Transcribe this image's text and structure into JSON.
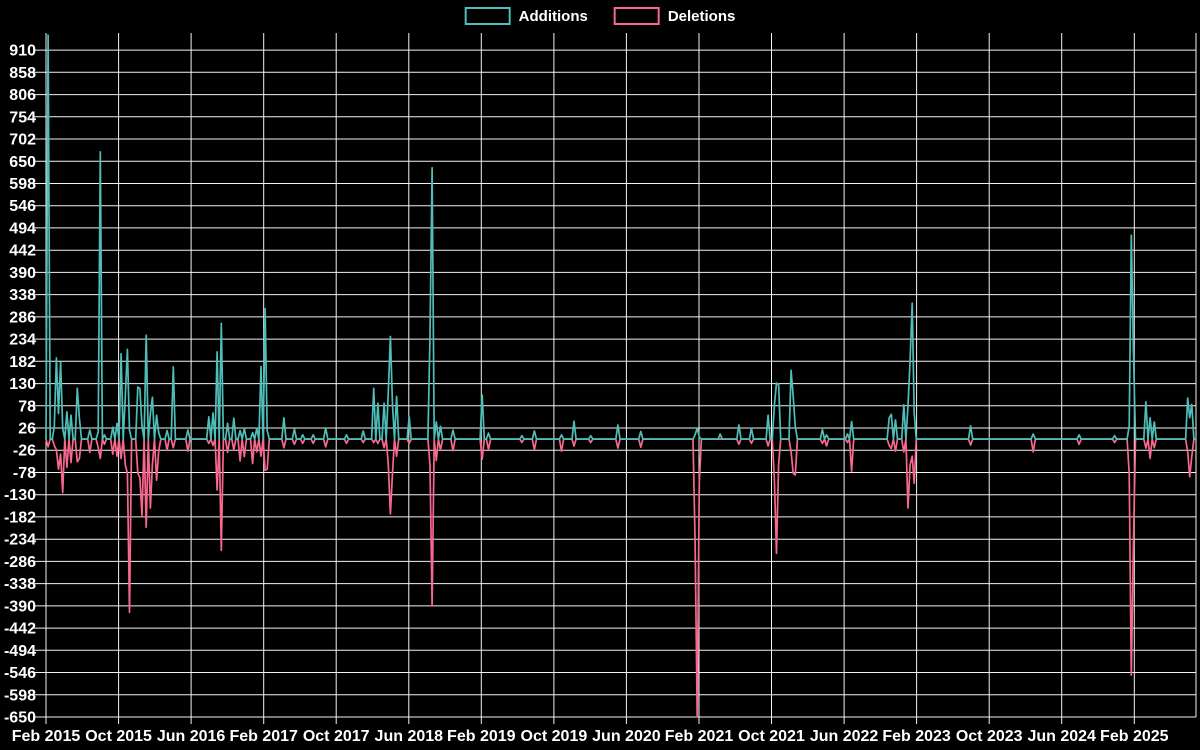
{
  "legend": {
    "items": [
      {
        "label": "Additions",
        "color": "#4fbdb8"
      },
      {
        "label": "Deletions",
        "color": "#f8688e"
      }
    ]
  },
  "colors": {
    "background": "#000000",
    "grid": "#f2f2f2",
    "axis_text": "#ffffff",
    "additions": "#4fbdb8",
    "deletions": "#f8688e"
  },
  "chart_data": {
    "type": "line",
    "title": "",
    "legend_position": "top-center",
    "grid": true,
    "x_axis": {
      "tick_labels": [
        "Feb 2015",
        "Oct 2015",
        "Jun 2016",
        "Feb 2017",
        "Oct 2017",
        "Jun 2018",
        "Feb 2019",
        "Oct 2019",
        "Jun 2020",
        "Feb 2021",
        "Oct 2021",
        "Jun 2022",
        "Feb 2023",
        "Oct 2023",
        "Jun 2024",
        "Feb 2025"
      ],
      "months_between_ticks": 8
    },
    "y_axis": {
      "tick_values": [
        910,
        858,
        806,
        754,
        702,
        650,
        598,
        546,
        494,
        442,
        390,
        338,
        286,
        234,
        182,
        130,
        78,
        26,
        -26,
        -78,
        -130,
        -182,
        -234,
        -286,
        -338,
        -390,
        -442,
        -494,
        -546,
        -598,
        -650
      ],
      "min": -650,
      "max": 950
    },
    "series": [
      {
        "name": "Additions",
        "color": "#4fbdb8",
        "sign": "positive"
      },
      {
        "name": "Deletions",
        "color": "#f8688e",
        "sign": "negative"
      }
    ],
    "sampling": "weekly",
    "n_points": 552,
    "baseline_value": 0,
    "weeks_per_tick": 34.7625,
    "spikes_format": [
      "week_index",
      "additions",
      "deletions"
    ],
    "spikes": [
      [
        1,
        945,
        -18
      ],
      [
        4,
        30,
        -15
      ],
      [
        5,
        190,
        -25
      ],
      [
        6,
        60,
        -70
      ],
      [
        7,
        180,
        -35
      ],
      [
        8,
        25,
        -125
      ],
      [
        10,
        64,
        -66
      ],
      [
        12,
        56,
        -55
      ],
      [
        15,
        119,
        -53
      ],
      [
        16,
        49,
        -45
      ],
      [
        21,
        21,
        -31
      ],
      [
        25,
        16,
        -20
      ],
      [
        26,
        672,
        -45
      ],
      [
        28,
        10,
        -12
      ],
      [
        32,
        28,
        -35
      ],
      [
        34,
        37,
        -40
      ],
      [
        36,
        200,
        -45
      ],
      [
        38,
        100,
        -60
      ],
      [
        39,
        210,
        -80
      ],
      [
        40,
        20,
        -405
      ],
      [
        44,
        122,
        -80
      ],
      [
        45,
        118,
        -90
      ],
      [
        46,
        30,
        -178
      ],
      [
        48,
        243,
        -206
      ],
      [
        50,
        60,
        -161
      ],
      [
        51,
        98,
        -60
      ],
      [
        53,
        56,
        -96
      ],
      [
        54,
        15,
        -28
      ],
      [
        58,
        20,
        -26
      ],
      [
        61,
        169,
        -20
      ],
      [
        68,
        21,
        -28
      ],
      [
        78,
        52,
        -10
      ],
      [
        80,
        61,
        -15
      ],
      [
        82,
        204,
        -119
      ],
      [
        84,
        271,
        -260
      ],
      [
        87,
        37,
        -31
      ],
      [
        90,
        49,
        -25
      ],
      [
        93,
        20,
        -51
      ],
      [
        95,
        25,
        -41
      ],
      [
        99,
        15,
        -57
      ],
      [
        101,
        25,
        -30
      ],
      [
        103,
        170,
        -40
      ],
      [
        105,
        305,
        -73
      ],
      [
        106,
        20,
        -70
      ],
      [
        114,
        50,
        -20
      ],
      [
        119,
        24,
        -12
      ],
      [
        123,
        10,
        -10
      ],
      [
        128,
        10,
        -10
      ],
      [
        134,
        26,
        -18
      ],
      [
        144,
        10,
        -10
      ],
      [
        152,
        19,
        -8
      ],
      [
        157,
        119,
        -8
      ],
      [
        159,
        84,
        -10
      ],
      [
        162,
        84,
        -20
      ],
      [
        164,
        110,
        -60
      ],
      [
        165,
        240,
        -175
      ],
      [
        166,
        80,
        -80
      ],
      [
        168,
        100,
        -40
      ],
      [
        174,
        52,
        -10
      ],
      [
        184,
        240,
        -60
      ],
      [
        185,
        635,
        -390
      ],
      [
        187,
        40,
        -50
      ],
      [
        189,
        30,
        -26
      ],
      [
        195,
        21,
        -27
      ],
      [
        209,
        103,
        -47
      ],
      [
        212,
        14,
        -24
      ],
      [
        228,
        8,
        -8
      ],
      [
        234,
        19,
        -24
      ],
      [
        247,
        10,
        -28
      ],
      [
        253,
        42,
        -16
      ],
      [
        261,
        8,
        -8
      ],
      [
        274,
        33,
        -21
      ],
      [
        285,
        18,
        -19
      ],
      [
        311,
        10,
        -240
      ],
      [
        312,
        26,
        -650
      ],
      [
        313,
        5,
        -100
      ],
      [
        323,
        12,
        0
      ],
      [
        332,
        33,
        -12
      ],
      [
        338,
        25,
        -10
      ],
      [
        346,
        56,
        -16
      ],
      [
        349,
        80,
        -95
      ],
      [
        350,
        131,
        -267
      ],
      [
        351,
        128,
        -60
      ],
      [
        357,
        161,
        -30
      ],
      [
        358,
        100,
        -80
      ],
      [
        359,
        29,
        -84
      ],
      [
        372,
        22,
        -10
      ],
      [
        374,
        10,
        -16
      ],
      [
        384,
        12,
        -8
      ],
      [
        386,
        41,
        -75
      ],
      [
        404,
        50,
        -15
      ],
      [
        405,
        58,
        -22
      ],
      [
        407,
        45,
        -28
      ],
      [
        411,
        80,
        -30
      ],
      [
        413,
        78,
        -161
      ],
      [
        414,
        185,
        -60
      ],
      [
        415,
        318,
        -40
      ],
      [
        416,
        60,
        -103
      ],
      [
        443,
        31,
        -14
      ],
      [
        473,
        12,
        -30
      ],
      [
        495,
        10,
        -12
      ],
      [
        512,
        8,
        -8
      ],
      [
        519,
        30,
        -80
      ],
      [
        520,
        477,
        -552
      ],
      [
        521,
        210,
        -248
      ],
      [
        527,
        87,
        -21
      ],
      [
        529,
        50,
        -45
      ],
      [
        531,
        40,
        -20
      ],
      [
        547,
        96,
        -30
      ],
      [
        548,
        50,
        -88
      ],
      [
        549,
        81,
        -40
      ]
    ]
  }
}
